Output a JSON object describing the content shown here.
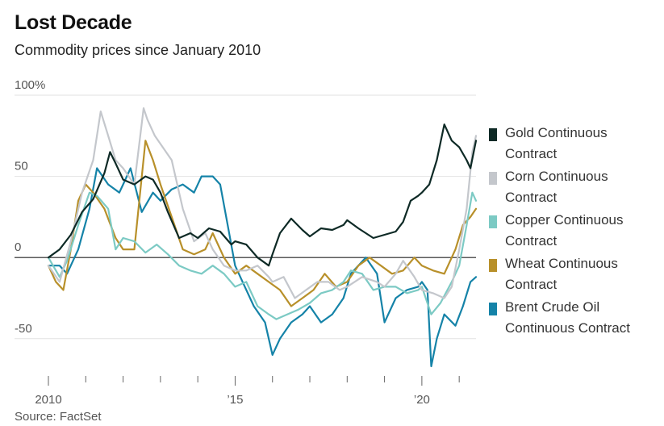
{
  "chart_data": {
    "type": "line",
    "title": "Lost Decade",
    "subtitle": "Commodity prices since January 2010",
    "source": "Source: FactSet",
    "xlim": [
      2010.0,
      2021.45
    ],
    "ylim": [
      -70,
      100
    ],
    "y_ticks": [
      {
        "value": 100,
        "label": "100%"
      },
      {
        "value": 50,
        "label": "50"
      },
      {
        "value": 0,
        "label": "0"
      },
      {
        "value": -50,
        "label": "-50"
      }
    ],
    "x_ticks": [
      {
        "value": 2010,
        "label": "2010"
      },
      {
        "value": 2015,
        "label": "’15"
      },
      {
        "value": 2020,
        "label": "’20"
      }
    ],
    "grid": "horizontal",
    "legend_position": "right",
    "series": [
      {
        "name": "Gold Continuous Contract",
        "color": "#0e2a26",
        "x": [
          2010.0,
          2010.3,
          2010.6,
          2010.9,
          2011.2,
          2011.5,
          2011.65,
          2011.8,
          2012.0,
          2012.3,
          2012.6,
          2012.8,
          2013.0,
          2013.2,
          2013.5,
          2013.8,
          2014.0,
          2014.3,
          2014.6,
          2014.9,
          2015.0,
          2015.3,
          2015.6,
          2015.9,
          2016.0,
          2016.2,
          2016.5,
          2016.8,
          2017.0,
          2017.3,
          2017.6,
          2017.9,
          2018.0,
          2018.3,
          2018.7,
          2019.0,
          2019.3,
          2019.5,
          2019.7,
          2019.9,
          2020.0,
          2020.2,
          2020.4,
          2020.6,
          2020.8,
          2021.0,
          2021.2,
          2021.3,
          2021.45
        ],
        "y": [
          0,
          5,
          14,
          28,
          36,
          52,
          65,
          58,
          48,
          45,
          50,
          48,
          40,
          28,
          12,
          15,
          12,
          18,
          16,
          8,
          10,
          8,
          0,
          -5,
          2,
          15,
          24,
          17,
          13,
          18,
          17,
          20,
          23,
          18,
          12,
          14,
          16,
          22,
          35,
          38,
          40,
          45,
          60,
          82,
          72,
          68,
          60,
          55,
          72
        ]
      },
      {
        "name": "Corn Continuous Contract",
        "color": "#c4c7cc",
        "x": [
          2010.0,
          2010.3,
          2010.6,
          2010.9,
          2011.2,
          2011.4,
          2011.6,
          2011.8,
          2012.0,
          2012.3,
          2012.55,
          2012.65,
          2012.85,
          2013.0,
          2013.3,
          2013.6,
          2013.9,
          2014.2,
          2014.4,
          2014.7,
          2015.0,
          2015.3,
          2015.6,
          2015.9,
          2016.0,
          2016.3,
          2016.6,
          2016.9,
          2017.2,
          2017.5,
          2017.8,
          2018.0,
          2018.4,
          2018.8,
          2019.0,
          2019.3,
          2019.5,
          2019.8,
          2020.0,
          2020.3,
          2020.6,
          2020.8,
          2021.0,
          2021.2,
          2021.35,
          2021.45
        ],
        "y": [
          -5,
          -15,
          10,
          40,
          60,
          90,
          75,
          60,
          55,
          45,
          92,
          85,
          75,
          70,
          60,
          30,
          10,
          15,
          5,
          -5,
          -8,
          -8,
          -5,
          -12,
          -15,
          -12,
          -25,
          -20,
          -15,
          -15,
          -20,
          -18,
          -12,
          -15,
          -18,
          -10,
          -2,
          -12,
          -20,
          -22,
          -25,
          -18,
          5,
          30,
          65,
          75
        ]
      },
      {
        "name": "Copper Continuous Contract",
        "color": "#7ccac4",
        "x": [
          2010.0,
          2010.3,
          2010.5,
          2010.8,
          2011.1,
          2011.3,
          2011.6,
          2011.8,
          2012.0,
          2012.3,
          2012.6,
          2012.9,
          2013.2,
          2013.5,
          2013.8,
          2014.1,
          2014.4,
          2014.7,
          2015.0,
          2015.3,
          2015.6,
          2015.9,
          2016.1,
          2016.4,
          2016.7,
          2017.0,
          2017.3,
          2017.6,
          2017.9,
          2018.1,
          2018.4,
          2018.7,
          2019.0,
          2019.3,
          2019.6,
          2019.9,
          2020.0,
          2020.25,
          2020.5,
          2020.8,
          2021.0,
          2021.2,
          2021.35,
          2021.45
        ],
        "y": [
          0,
          -12,
          -2,
          20,
          40,
          38,
          30,
          5,
          12,
          10,
          3,
          8,
          2,
          -5,
          -8,
          -10,
          -5,
          -10,
          -18,
          -15,
          -30,
          -35,
          -38,
          -35,
          -32,
          -28,
          -22,
          -20,
          -15,
          -8,
          -10,
          -20,
          -18,
          -18,
          -22,
          -20,
          -18,
          -35,
          -28,
          -15,
          -5,
          20,
          40,
          35
        ]
      },
      {
        "name": "Wheat Continuous Contract",
        "color": "#b8902a",
        "x": [
          2010.0,
          2010.2,
          2010.4,
          2010.6,
          2010.8,
          2011.0,
          2011.2,
          2011.5,
          2011.8,
          2012.0,
          2012.3,
          2012.6,
          2012.8,
          2013.0,
          2013.3,
          2013.6,
          2013.9,
          2014.2,
          2014.4,
          2014.7,
          2015.0,
          2015.3,
          2015.6,
          2015.9,
          2016.2,
          2016.5,
          2016.8,
          2017.1,
          2017.4,
          2017.7,
          2018.0,
          2018.3,
          2018.6,
          2018.9,
          2019.2,
          2019.5,
          2019.8,
          2020.0,
          2020.3,
          2020.6,
          2020.9,
          2021.1,
          2021.3,
          2021.45
        ],
        "y": [
          -5,
          -15,
          -20,
          5,
          35,
          45,
          40,
          30,
          12,
          5,
          5,
          72,
          60,
          45,
          25,
          5,
          2,
          5,
          15,
          0,
          -10,
          -5,
          -10,
          -15,
          -20,
          -30,
          -25,
          -20,
          -10,
          -18,
          -15,
          -5,
          0,
          -5,
          -10,
          -8,
          0,
          -5,
          -8,
          -10,
          5,
          20,
          25,
          30
        ]
      },
      {
        "name": "Brent Crude Oil Continuous Contract",
        "color": "#1583a8",
        "x": [
          2010.0,
          2010.3,
          2010.5,
          2010.8,
          2011.1,
          2011.3,
          2011.6,
          2011.9,
          2012.0,
          2012.2,
          2012.5,
          2012.8,
          2013.0,
          2013.3,
          2013.6,
          2013.9,
          2014.1,
          2014.4,
          2014.6,
          2014.8,
          2015.0,
          2015.2,
          2015.5,
          2015.8,
          2016.0,
          2016.2,
          2016.5,
          2016.8,
          2017.0,
          2017.3,
          2017.6,
          2017.9,
          2018.1,
          2018.5,
          2018.8,
          2019.0,
          2019.3,
          2019.6,
          2019.9,
          2020.0,
          2020.15,
          2020.25,
          2020.4,
          2020.6,
          2020.9,
          2021.1,
          2021.3,
          2021.45
        ],
        "y": [
          -5,
          -5,
          -10,
          5,
          30,
          55,
          45,
          40,
          45,
          55,
          28,
          40,
          35,
          42,
          45,
          40,
          50,
          50,
          45,
          20,
          -5,
          -15,
          -30,
          -40,
          -60,
          -50,
          -40,
          -35,
          -30,
          -40,
          -35,
          -25,
          -10,
          0,
          -10,
          -40,
          -25,
          -20,
          -18,
          -15,
          -20,
          -67,
          -50,
          -35,
          -42,
          -30,
          -15,
          -12
        ]
      }
    ]
  }
}
